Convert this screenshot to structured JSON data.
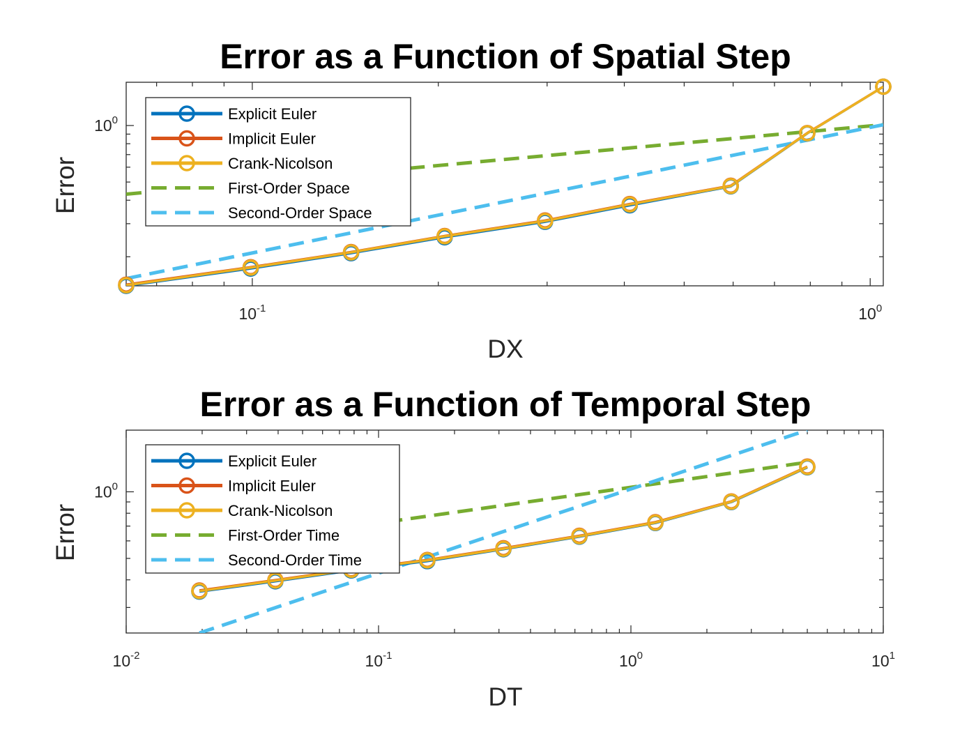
{
  "colors": {
    "explicit": "#0072BD",
    "implicit": "#D95319",
    "crank": "#EDB120",
    "first_order": "#77AC30",
    "second_order": "#4DBEEE",
    "axis": "#262626"
  },
  "chart_data": [
    {
      "type": "line",
      "title": "Error as a Function of Spatial Step",
      "xlabel": "DX",
      "ylabel": "Error",
      "xscale": "log",
      "yscale": "log",
      "xlim": [
        0.0625,
        1.05
      ],
      "ylim": [
        0.14,
        1.7
      ],
      "x_ticks": [
        {
          "base": "10",
          "exp": "-1",
          "value": 0.1
        },
        {
          "base": "10",
          "exp": "0",
          "value": 1
        }
      ],
      "y_ticks": [
        {
          "base": "10",
          "exp": "0",
          "value": 1
        }
      ],
      "legend_position": "top-left",
      "series": [
        {
          "name": "Explicit Euler",
          "key": "explicit",
          "style": "solid-marker",
          "x": [
            0.0625,
            0.0994,
            0.1445,
            0.2048,
            0.2977,
            0.4082,
            0.5947,
            0.791,
            1.05
          ],
          "y": [
            0.14,
            0.173,
            0.209,
            0.254,
            0.307,
            0.376,
            0.474,
            0.908,
            1.61
          ]
        },
        {
          "name": "Implicit Euler",
          "key": "implicit",
          "style": "solid-marker",
          "x": [
            0.0625,
            0.0994,
            0.1445,
            0.2048,
            0.2977,
            0.4082,
            0.5947,
            0.791,
            1.05
          ],
          "y": [
            0.142,
            0.176,
            0.212,
            0.258,
            0.312,
            0.382,
            0.478,
            0.912,
            1.61
          ]
        },
        {
          "name": "Crank-Nicolson",
          "key": "crank",
          "style": "solid-marker",
          "x": [
            0.0625,
            0.0994,
            0.1445,
            0.2048,
            0.2977,
            0.4082,
            0.5947,
            0.791,
            1.05
          ],
          "y": [
            0.141,
            0.175,
            0.211,
            0.257,
            0.31,
            0.38,
            0.476,
            0.91,
            1.61
          ]
        },
        {
          "name": "First-Order Space",
          "key": "first_order",
          "style": "dashed",
          "x": [
            0.0625,
            1.05
          ],
          "y": [
            0.431,
            1.01
          ]
        },
        {
          "name": "Second-Order Space",
          "key": "second_order",
          "style": "dashed",
          "x": [
            0.0625,
            1.05
          ],
          "y": [
            0.153,
            1.01
          ]
        }
      ]
    },
    {
      "type": "line",
      "title": "Error as a Function of Temporal Step",
      "xlabel": "DT",
      "ylabel": "Error",
      "xscale": "log",
      "yscale": "log",
      "xlim": [
        0.01,
        10
      ],
      "ylim": [
        0.23,
        1.9
      ],
      "x_ticks": [
        {
          "base": "10",
          "exp": "-2",
          "value": 0.01
        },
        {
          "base": "10",
          "exp": "-1",
          "value": 0.1
        },
        {
          "base": "10",
          "exp": "0",
          "value": 1
        },
        {
          "base": "10",
          "exp": "1",
          "value": 10
        }
      ],
      "y_ticks": [
        {
          "base": "10",
          "exp": "0",
          "value": 1
        }
      ],
      "legend_position": "top-left",
      "series": [
        {
          "name": "Explicit Euler",
          "key": "explicit",
          "style": "solid-marker",
          "x": [
            0.0195,
            0.039,
            0.078,
            0.156,
            0.3125,
            0.625,
            1.25,
            2.5,
            5
          ],
          "y": [
            0.354,
            0.394,
            0.441,
            0.486,
            0.55,
            0.627,
            0.723,
            0.899,
            1.29
          ]
        },
        {
          "name": "Implicit Euler",
          "key": "implicit",
          "style": "solid-marker",
          "x": [
            0.0195,
            0.039,
            0.078,
            0.156,
            0.3125,
            0.625,
            1.25,
            2.5,
            5
          ],
          "y": [
            0.358,
            0.399,
            0.446,
            0.492,
            0.556,
            0.633,
            0.729,
            0.905,
            1.3
          ]
        },
        {
          "name": "Crank-Nicolson",
          "key": "crank",
          "style": "solid-marker",
          "x": [
            0.0195,
            0.039,
            0.078,
            0.156,
            0.3125,
            0.625,
            1.25,
            2.5,
            5
          ],
          "y": [
            0.356,
            0.397,
            0.444,
            0.49,
            0.553,
            0.63,
            0.726,
            0.902,
            1.295
          ]
        },
        {
          "name": "First-Order Time",
          "key": "first_order",
          "style": "dashed",
          "x": [
            0.0195,
            5
          ],
          "y": [
            0.554,
            1.36
          ]
        },
        {
          "name": "Second-Order Time",
          "key": "second_order",
          "style": "dashed",
          "x": [
            0.0195,
            5
          ],
          "y": [
            0.23,
            1.9
          ]
        }
      ]
    }
  ]
}
